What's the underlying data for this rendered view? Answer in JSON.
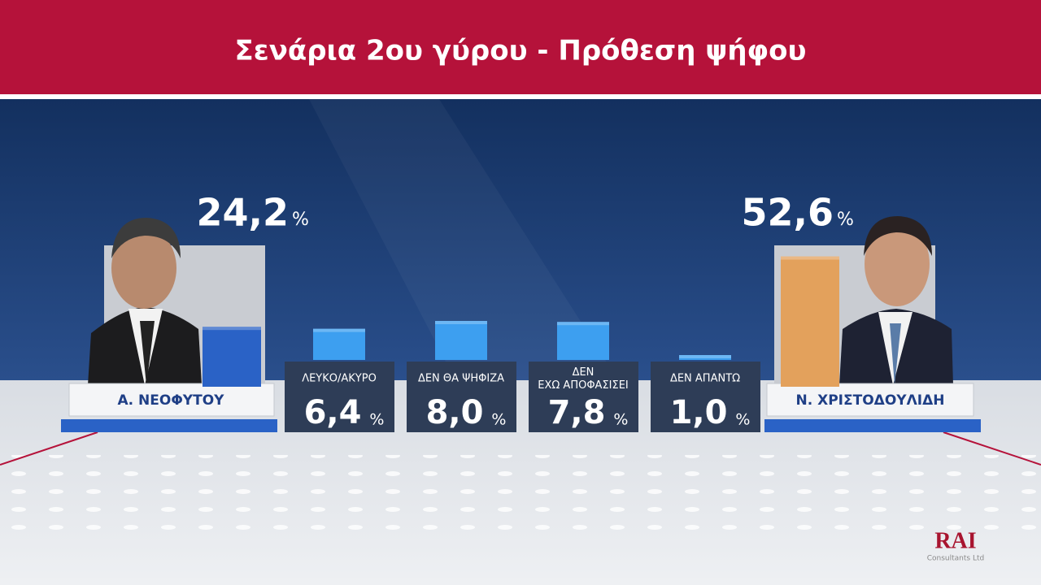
{
  "chart_data": {
    "type": "bar",
    "title": "Σενάρια 2ου γύρου - Πρόθεση ψήφου",
    "categories": [
      "Α. ΝΕΟΦΥΤΟΥ",
      "ΛΕΥΚΟ/ΑΚΥΡΟ",
      "ΔΕΝ ΘΑ ΨΗΦΙΖΑ",
      "ΔΕΝ ΕΧΩ ΑΠΟΦΑΣΙΣΕΙ",
      "ΔΕΝ ΑΠΑΝΤΩ",
      "Ν. ΧΡΙΣΤΟΔΟΥΛΙΔΗ"
    ],
    "values": [
      24.2,
      6.4,
      8.0,
      7.8,
      1.0,
      52.6
    ],
    "value_labels": [
      "24,2",
      "6,4",
      "8,0",
      "7,8",
      "1,0",
      "52,6"
    ],
    "unit": "%",
    "colors": [
      "#2a62c6",
      "#3d9ff0",
      "#3d9ff0",
      "#3d9ff0",
      "#3d9ff0",
      "#e3a15c"
    ],
    "source": {
      "name": "RAI",
      "subtitle": "Consultants Ltd"
    }
  }
}
